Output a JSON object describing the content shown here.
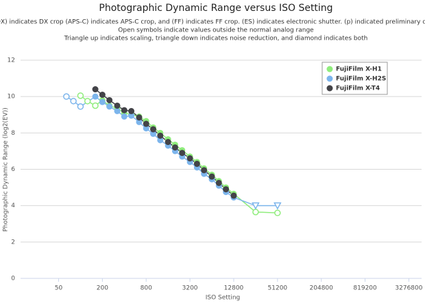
{
  "chart_data": {
    "type": "line",
    "title": "Photographic Dynamic Range versus ISO Setting",
    "subtitle": [
      "(DX) indicates DX crop (APS-C) indicates APS-C crop, and (FF) indicates FF crop. (ES) indicates electronic shutter. (p) indicated preliminary data.",
      "Open symbols indicate values outside the normal analog range",
      "Triangle up indicates scaling, triangle down indicates noise reduction, and diamond indicates both"
    ],
    "x_label": "ISO Setting",
    "y_label": "Photographic Dynamic Range (log2(EV))",
    "xscale": "log",
    "xlim": [
      15,
      4900000
    ],
    "xticks": [
      50,
      200,
      800,
      3200,
      12800,
      51200,
      204800,
      819200,
      3276800
    ],
    "ylim": [
      0,
      12
    ],
    "yticks": [
      0,
      2,
      4,
      6,
      8,
      10,
      12
    ],
    "grid": true,
    "legend": "upper right",
    "series": [
      {
        "name": "FujiFilm X-H1",
        "color": "#90ed7d",
        "x": [
          100,
          125,
          160,
          200,
          250,
          320,
          400,
          500,
          640,
          800,
          1000,
          1250,
          1600,
          2000,
          2500,
          3200,
          4000,
          5000,
          6400,
          8000,
          10000,
          12800,
          25600,
          51200
        ],
        "values": [
          10.05,
          9.75,
          9.5,
          9.8,
          9.5,
          9.35,
          9.1,
          9.0,
          8.9,
          8.65,
          8.3,
          8.0,
          7.65,
          7.35,
          7.05,
          6.7,
          6.4,
          6.05,
          5.7,
          5.35,
          5.0,
          4.65,
          3.65,
          3.6
        ],
        "markers": [
          "circle-open",
          "circle-open",
          "circle-open",
          "circle",
          "circle",
          "circle",
          "circle",
          "circle",
          "circle",
          "circle",
          "circle",
          "circle",
          "circle",
          "circle",
          "circle",
          "circle",
          "circle",
          "circle",
          "circle",
          "circle",
          "circle",
          "circle",
          "circle-open",
          "circle-open"
        ]
      },
      {
        "name": "FujiFilm X-H2S",
        "color": "#7cb5ec",
        "x": [
          64,
          80,
          100,
          160,
          200,
          250,
          320,
          400,
          500,
          640,
          800,
          1000,
          1250,
          1600,
          2000,
          2500,
          3200,
          4000,
          5000,
          6400,
          8000,
          10000,
          12800,
          25600,
          51200
        ],
        "values": [
          10.0,
          9.75,
          9.45,
          10.0,
          9.7,
          9.45,
          9.2,
          8.9,
          8.95,
          8.6,
          8.25,
          7.95,
          7.6,
          7.3,
          7.0,
          6.7,
          6.4,
          6.1,
          5.75,
          5.45,
          5.1,
          4.75,
          4.45,
          4.0,
          4.0
        ],
        "markers": [
          "circle-open",
          "circle-open",
          "circle-open",
          "circle",
          "circle",
          "circle",
          "circle",
          "circle",
          "circle",
          "circle",
          "circle",
          "circle",
          "circle",
          "circle",
          "circle",
          "circle",
          "circle",
          "circle",
          "circle",
          "circle",
          "circle",
          "circle",
          "circle",
          "triangle-down-open",
          "triangle-down-open"
        ]
      },
      {
        "name": "FujiFilm X-T4",
        "color": "#434348",
        "x": [
          160,
          200,
          250,
          320,
          400,
          500,
          640,
          800,
          1000,
          1250,
          1600,
          2000,
          2500,
          3200,
          4000,
          5000,
          6400,
          8000,
          10000,
          12800
        ],
        "values": [
          10.4,
          10.1,
          9.8,
          9.5,
          9.25,
          9.2,
          8.85,
          8.5,
          8.2,
          7.85,
          7.5,
          7.2,
          6.9,
          6.6,
          6.3,
          5.95,
          5.6,
          5.25,
          4.9,
          4.55
        ],
        "markers": [
          "circle",
          "circle",
          "circle",
          "circle",
          "circle",
          "circle",
          "circle",
          "circle",
          "circle",
          "circle",
          "circle",
          "circle",
          "circle",
          "circle",
          "circle",
          "circle",
          "circle",
          "circle",
          "circle",
          "circle"
        ]
      }
    ]
  }
}
